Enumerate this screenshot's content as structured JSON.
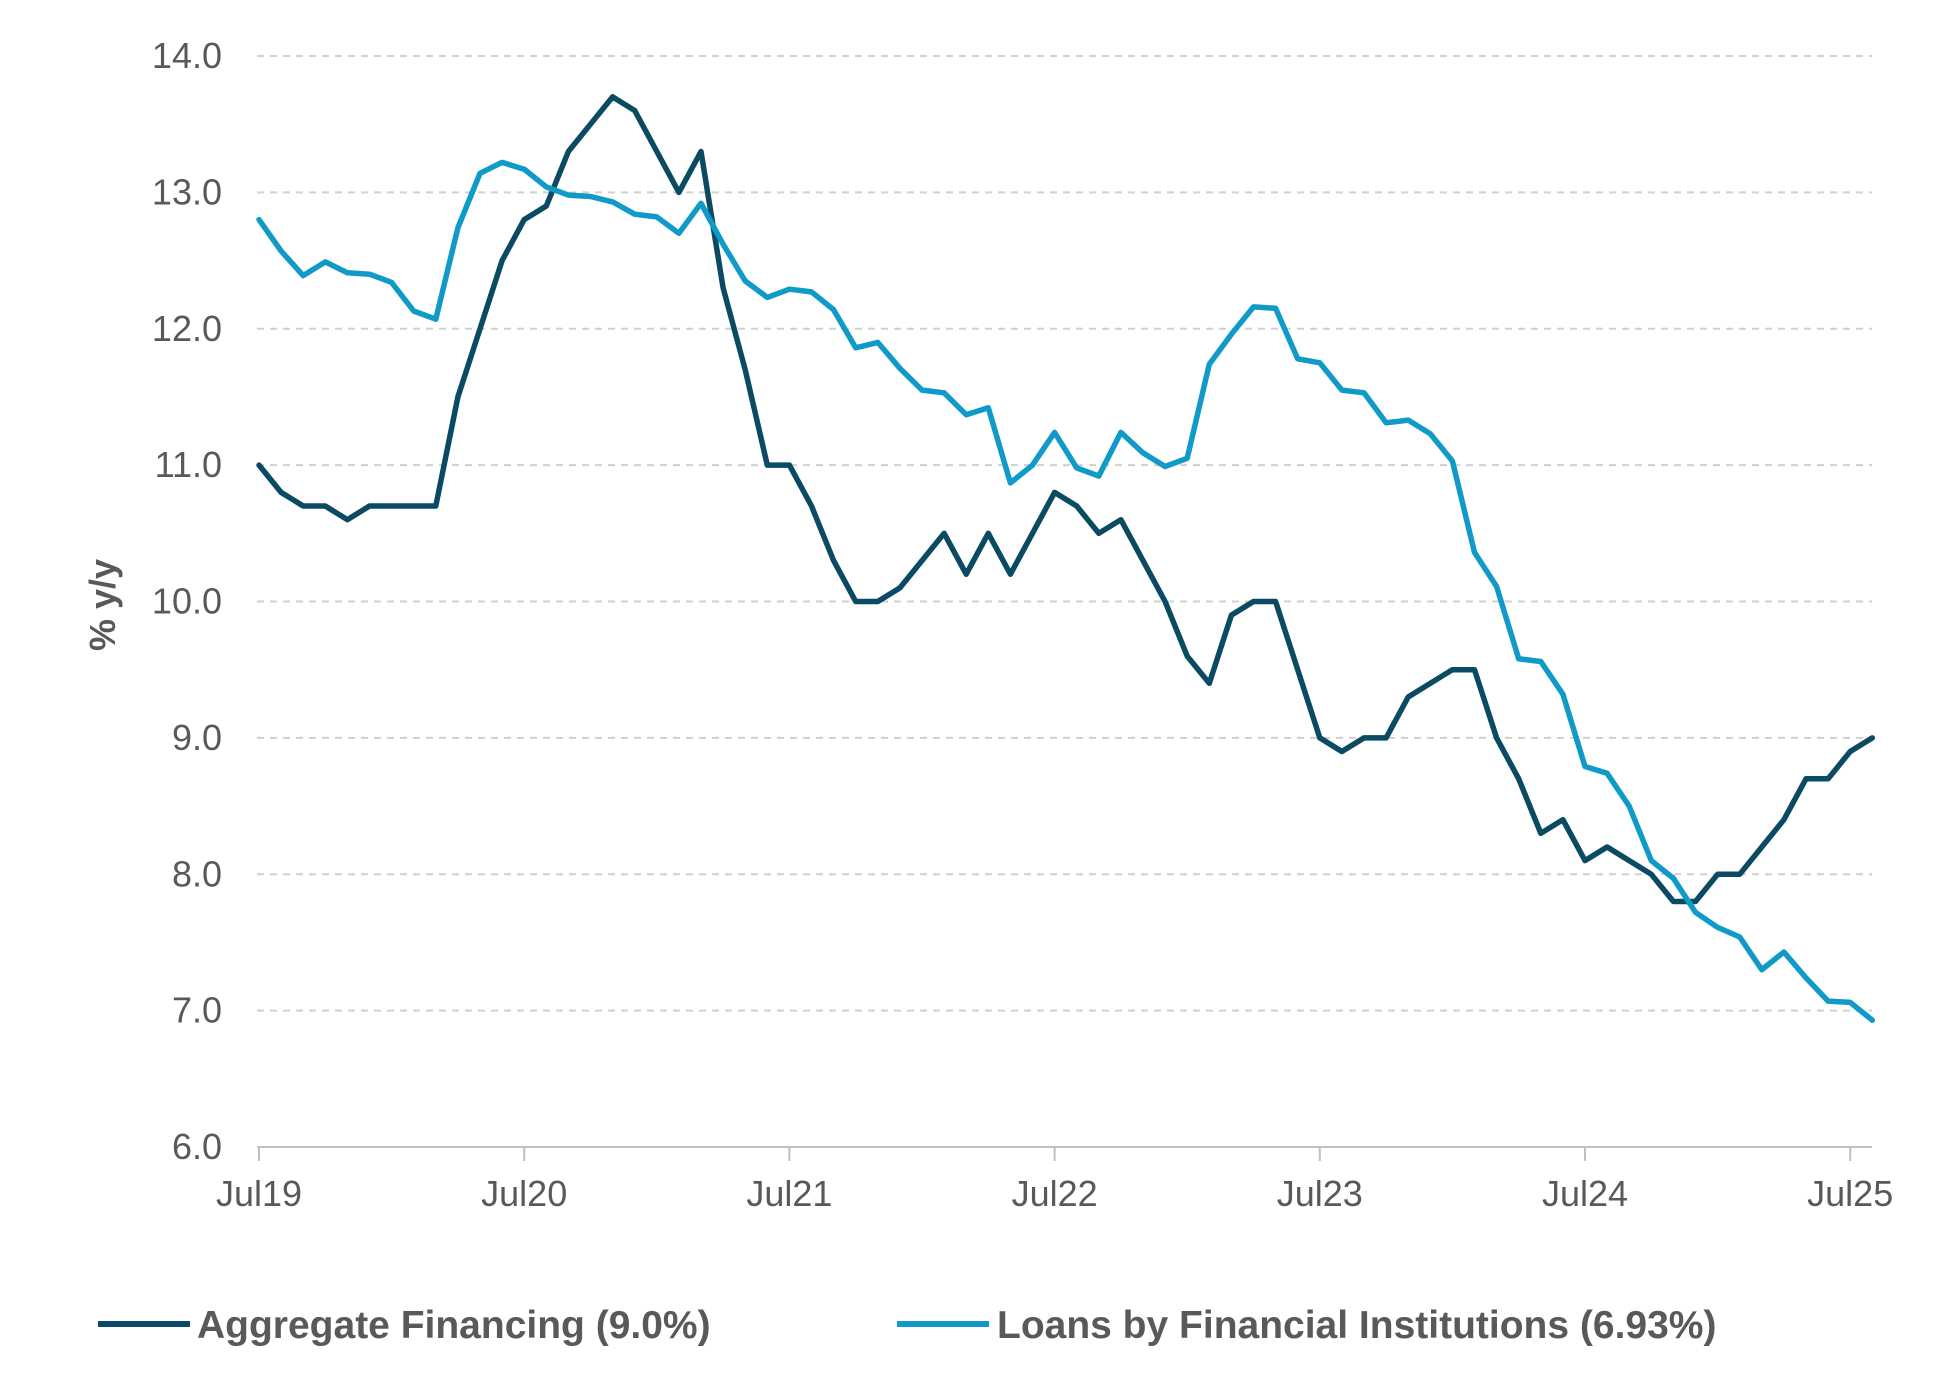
{
  "chart_data": {
    "type": "line",
    "ylabel": "% y/y",
    "xlabel": "",
    "ylim": [
      6.0,
      14.0
    ],
    "yticks": [
      "6.0",
      "7.0",
      "8.0",
      "9.0",
      "10.0",
      "11.0",
      "12.0",
      "13.0",
      "14.0"
    ],
    "xticks": [
      "Jul19",
      "Jul20",
      "Jul21",
      "Jul22",
      "Jul23",
      "Jul24",
      "Jul25"
    ],
    "x_start": "Jul19",
    "x_end": "Jul25",
    "grid": true,
    "legend_position": "bottom",
    "series": [
      {
        "name": "Aggregate Financing (9.0%)",
        "color": "#0b4a63",
        "values": [
          11.0,
          10.8,
          10.7,
          10.7,
          10.6,
          10.7,
          10.7,
          10.7,
          10.7,
          11.5,
          12.0,
          12.5,
          12.8,
          12.9,
          13.3,
          13.5,
          13.7,
          13.6,
          13.3,
          13.0,
          13.3,
          12.3,
          11.7,
          11.0,
          11.0,
          10.7,
          10.3,
          10.0,
          10.0,
          10.1,
          10.3,
          10.5,
          10.2,
          10.5,
          10.2,
          10.5,
          10.8,
          10.7,
          10.5,
          10.6,
          10.3,
          10.0,
          9.6,
          9.4,
          9.9,
          10.0,
          10.0,
          9.5,
          9.0,
          8.9,
          9.0,
          9.0,
          9.3,
          9.4,
          9.5,
          9.5,
          9.0,
          8.7,
          8.3,
          8.4,
          8.1,
          8.2,
          8.1,
          8.0,
          7.8,
          7.8,
          8.0,
          8.0,
          8.2,
          8.4,
          8.7,
          8.7,
          8.9,
          9.0
        ]
      },
      {
        "name": "Loans by Financial Institutions (6.93%)",
        "color": "#0f9ac7",
        "values": [
          12.8,
          12.57,
          12.39,
          12.49,
          12.41,
          12.4,
          12.34,
          12.13,
          12.07,
          12.74,
          13.14,
          13.22,
          13.17,
          13.04,
          12.98,
          12.97,
          12.93,
          12.84,
          12.82,
          12.7,
          12.92,
          12.62,
          12.35,
          12.23,
          12.29,
          12.27,
          12.14,
          11.86,
          11.9,
          11.71,
          11.55,
          11.53,
          11.37,
          11.42,
          10.87,
          11.0,
          11.24,
          10.98,
          10.92,
          11.24,
          11.09,
          10.99,
          11.05,
          11.74,
          11.96,
          12.16,
          12.15,
          11.78,
          11.75,
          11.55,
          11.53,
          11.31,
          11.33,
          11.23,
          11.03,
          10.36,
          10.11,
          9.58,
          9.56,
          9.32,
          8.79,
          8.74,
          8.5,
          8.1,
          7.97,
          7.72,
          7.61,
          7.54,
          7.3,
          7.43,
          7.24,
          7.07,
          7.06,
          6.93
        ]
      }
    ]
  }
}
